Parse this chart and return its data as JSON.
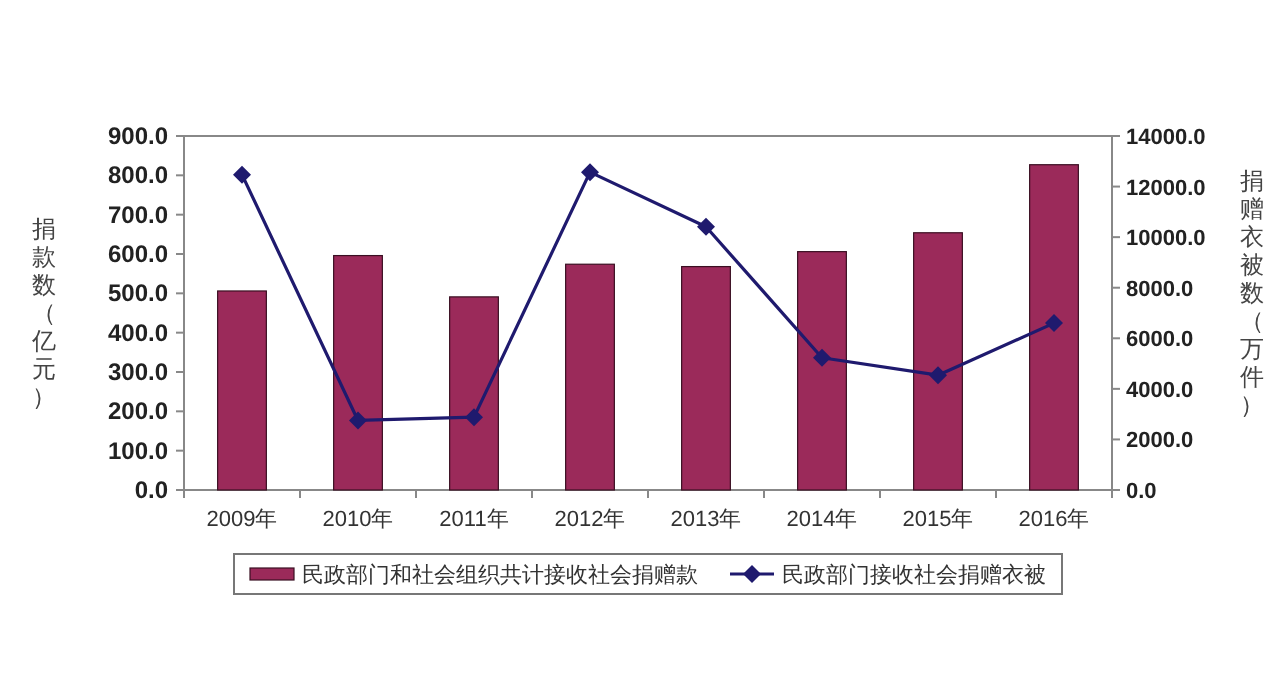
{
  "chart_data": {
    "type": "bar",
    "categories": [
      "2009年",
      "2010年",
      "2011年",
      "2012年",
      "2013年",
      "2014年",
      "2015年",
      "2016年"
    ],
    "ylabel": "捐款数（亿元）",
    "y2label": "捐赠衣被数（万件）",
    "series": [
      {
        "name": "民政部门和社会组织共计接收社会捐赠款",
        "color": "#9b2a5a",
        "values": [
          506,
          596,
          491,
          574,
          568,
          606,
          654,
          827
        ]
      },
      {
        "name": "民政部门接收社会捐赠衣被",
        "type": "line",
        "axis": "y2",
        "color": "#1f1a6e",
        "marker": "diamond",
        "values": [
          12470,
          2750,
          2880,
          12570,
          10410,
          5230,
          4540,
          6600
        ]
      }
    ],
    "ylim": [
      0,
      900
    ],
    "yticks": [
      {
        "value": 0,
        "label": "0.0"
      },
      {
        "value": 100,
        "label": "100.0"
      },
      {
        "value": 200,
        "label": "200.0"
      },
      {
        "value": 300,
        "label": "300.0"
      },
      {
        "value": 400,
        "label": "400.0"
      },
      {
        "value": 500,
        "label": "500.0"
      },
      {
        "value": 600,
        "label": "600.0"
      },
      {
        "value": 700,
        "label": "700.0"
      },
      {
        "value": 800,
        "label": "800.0"
      },
      {
        "value": 900,
        "label": "900.0"
      }
    ],
    "y2lim": [
      0,
      14000
    ],
    "y2ticks": [
      {
        "value": 0,
        "label": "0.0"
      },
      {
        "value": 2000,
        "label": "2000.0"
      },
      {
        "value": 4000,
        "label": "4000.0"
      },
      {
        "value": 6000,
        "label": "6000.0"
      },
      {
        "value": 8000,
        "label": "8000.0"
      },
      {
        "value": 10000,
        "label": "10000.0"
      },
      {
        "value": 12000,
        "label": "12000.0"
      },
      {
        "value": 14000,
        "label": "14000.0"
      }
    ],
    "grid": false,
    "legend": "bottom"
  }
}
